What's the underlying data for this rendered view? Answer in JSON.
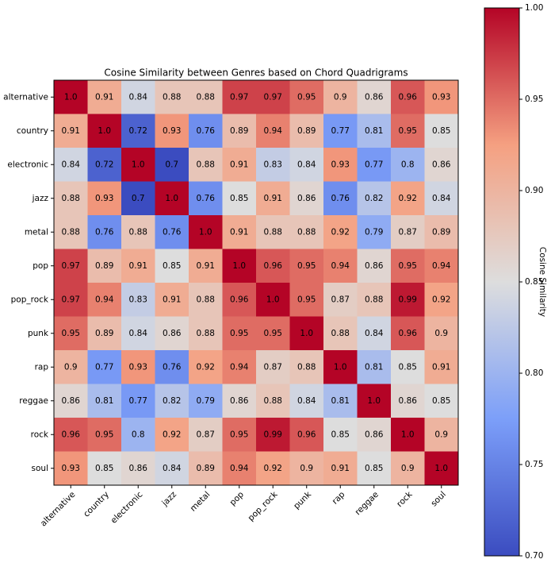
{
  "chart_data": {
    "type": "heatmap",
    "title": "Cosine Similarity between Genres based on Chord Quadrigrams",
    "categories": [
      "alternative",
      "country",
      "electronic",
      "jazz",
      "metal",
      "pop",
      "pop_rock",
      "punk",
      "rap",
      "reggae",
      "rock",
      "soul"
    ],
    "values": [
      [
        1.0,
        0.91,
        0.84,
        0.88,
        0.88,
        0.97,
        0.97,
        0.95,
        0.9,
        0.86,
        0.96,
        0.93
      ],
      [
        0.91,
        1.0,
        0.72,
        0.93,
        0.76,
        0.89,
        0.94,
        0.89,
        0.77,
        0.81,
        0.95,
        0.85
      ],
      [
        0.84,
        0.72,
        1.0,
        0.7,
        0.88,
        0.91,
        0.83,
        0.84,
        0.93,
        0.77,
        0.8,
        0.86
      ],
      [
        0.88,
        0.93,
        0.7,
        1.0,
        0.76,
        0.85,
        0.91,
        0.86,
        0.76,
        0.82,
        0.92,
        0.84
      ],
      [
        0.88,
        0.76,
        0.88,
        0.76,
        1.0,
        0.91,
        0.88,
        0.88,
        0.92,
        0.79,
        0.87,
        0.89
      ],
      [
        0.97,
        0.89,
        0.91,
        0.85,
        0.91,
        1.0,
        0.96,
        0.95,
        0.94,
        0.86,
        0.95,
        0.94
      ],
      [
        0.97,
        0.94,
        0.83,
        0.91,
        0.88,
        0.96,
        1.0,
        0.95,
        0.87,
        0.88,
        0.99,
        0.92
      ],
      [
        0.95,
        0.89,
        0.84,
        0.86,
        0.88,
        0.95,
        0.95,
        1.0,
        0.88,
        0.84,
        0.96,
        0.9
      ],
      [
        0.9,
        0.77,
        0.93,
        0.76,
        0.92,
        0.94,
        0.87,
        0.88,
        1.0,
        0.81,
        0.85,
        0.91
      ],
      [
        0.86,
        0.81,
        0.77,
        0.82,
        0.79,
        0.86,
        0.88,
        0.84,
        0.81,
        1.0,
        0.86,
        0.85
      ],
      [
        0.96,
        0.95,
        0.8,
        0.92,
        0.87,
        0.95,
        0.99,
        0.96,
        0.85,
        0.86,
        1.0,
        0.9
      ],
      [
        0.93,
        0.85,
        0.86,
        0.84,
        0.89,
        0.94,
        0.92,
        0.9,
        0.91,
        0.85,
        0.9,
        1.0
      ]
    ],
    "value_labels": [
      [
        "1.0",
        "0.91",
        "0.84",
        "0.88",
        "0.88",
        "0.97",
        "0.97",
        "0.95",
        "0.9",
        "0.86",
        "0.96",
        "0.93"
      ],
      [
        "0.91",
        "1.0",
        "0.72",
        "0.93",
        "0.76",
        "0.89",
        "0.94",
        "0.89",
        "0.77",
        "0.81",
        "0.95",
        "0.85"
      ],
      [
        "0.84",
        "0.72",
        "1.0",
        "0.7",
        "0.88",
        "0.91",
        "0.83",
        "0.84",
        "0.93",
        "0.77",
        "0.8",
        "0.86"
      ],
      [
        "0.88",
        "0.93",
        "0.7",
        "1.0",
        "0.76",
        "0.85",
        "0.91",
        "0.86",
        "0.76",
        "0.82",
        "0.92",
        "0.84"
      ],
      [
        "0.88",
        "0.76",
        "0.88",
        "0.76",
        "1.0",
        "0.91",
        "0.88",
        "0.88",
        "0.92",
        "0.79",
        "0.87",
        "0.89"
      ],
      [
        "0.97",
        "0.89",
        "0.91",
        "0.85",
        "0.91",
        "1.0",
        "0.96",
        "0.95",
        "0.94",
        "0.86",
        "0.95",
        "0.94"
      ],
      [
        "0.97",
        "0.94",
        "0.83",
        "0.91",
        "0.88",
        "0.96",
        "1.0",
        "0.95",
        "0.87",
        "0.88",
        "0.99",
        "0.92"
      ],
      [
        "0.95",
        "0.89",
        "0.84",
        "0.86",
        "0.88",
        "0.95",
        "0.95",
        "1.0",
        "0.88",
        "0.84",
        "0.96",
        "0.9"
      ],
      [
        "0.9",
        "0.77",
        "0.93",
        "0.76",
        "0.92",
        "0.94",
        "0.87",
        "0.88",
        "1.0",
        "0.81",
        "0.85",
        "0.91"
      ],
      [
        "0.86",
        "0.81",
        "0.77",
        "0.82",
        "0.79",
        "0.86",
        "0.88",
        "0.84",
        "0.81",
        "1.0",
        "0.86",
        "0.85"
      ],
      [
        "0.96",
        "0.95",
        "0.8",
        "0.92",
        "0.87",
        "0.95",
        "0.99",
        "0.96",
        "0.85",
        "0.86",
        "1.0",
        "0.9"
      ],
      [
        "0.93",
        "0.85",
        "0.86",
        "0.84",
        "0.89",
        "0.94",
        "0.92",
        "0.9",
        "0.91",
        "0.85",
        "0.9",
        "1.0"
      ]
    ],
    "colormap": "coolwarm",
    "colorbar_label": "Cosine Similarity",
    "clim": [
      0.7,
      1.0
    ],
    "cticks": [
      {
        "value": 0.7,
        "label": "0.70"
      },
      {
        "value": 0.75,
        "label": "0.75"
      },
      {
        "value": 0.8,
        "label": "0.80"
      },
      {
        "value": 0.85,
        "label": "0.85"
      },
      {
        "value": 0.9,
        "label": "0.90"
      },
      {
        "value": 0.95,
        "label": "0.95"
      },
      {
        "value": 1.0,
        "label": "1.00"
      }
    ]
  }
}
